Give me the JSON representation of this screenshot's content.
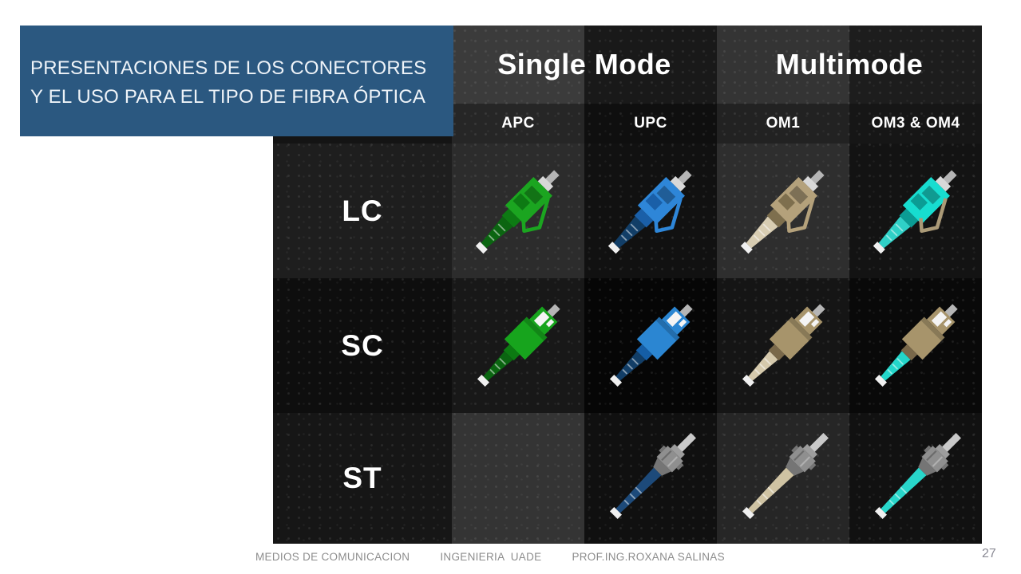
{
  "title": {
    "text": "PRESENTACIONES DE LOS CONECTORES Y EL USO PARA EL TIPO DE FIBRA ÓPTICA"
  },
  "colors": {
    "title_bg": "#2b5880",
    "title_text": "#eef3f8",
    "page_bg": "#ffffff",
    "table_bg": "#101010",
    "footer_text": "#8c8c8c",
    "apc_green": "#1ba520",
    "upc_blue": "#2e86d8",
    "om1_beige": "#b4a17b",
    "om3_om4_aqua": "#23d6ca"
  },
  "table": {
    "group_headers": [
      {
        "label": "Single Mode",
        "span": 2
      },
      {
        "label": "Multimode",
        "span": 2
      }
    ],
    "col_headers": [
      "APC",
      "UPC",
      "OM1",
      "OM3 & OM4"
    ],
    "row_headers": [
      "LC",
      "SC",
      "ST"
    ],
    "cells": [
      [
        {
          "name": "lc-apc-connector",
          "connector": "LC",
          "variant": "APC",
          "body": "#1ba520",
          "body_dark": "#0d7a13",
          "boot": "#0b6511"
        },
        {
          "name": "lc-upc-connector",
          "connector": "LC",
          "variant": "UPC",
          "body": "#2e86d8",
          "body_dark": "#1a5fa8",
          "boot": "#123e67"
        },
        {
          "name": "lc-om1-connector",
          "connector": "LC",
          "variant": "OM1",
          "body": "#b4a17b",
          "body_dark": "#7e6f4e",
          "boot": "#d8cdb2"
        },
        {
          "name": "lc-om3-om4-connector",
          "connector": "LC",
          "variant": "OM3 & OM4",
          "body": "#17ddd0",
          "body_dark": "#0b9c94",
          "boot": "#2fd0c7",
          "latch": "#ab9a77"
        }
      ],
      [
        {
          "name": "sc-apc-connector",
          "connector": "SC",
          "variant": "APC",
          "body": "#17a41d",
          "body_dark": "#0c7a12",
          "boot": "#0b6511"
        },
        {
          "name": "sc-upc-connector",
          "connector": "SC",
          "variant": "UPC",
          "body": "#2b86d2",
          "body_dark": "#155ea6",
          "boot": "#123e67"
        },
        {
          "name": "sc-om1-connector",
          "connector": "SC",
          "variant": "OM1",
          "body": "#a7946b",
          "body_dark": "#79684a",
          "boot": "#d5c9ac"
        },
        {
          "name": "sc-om3-om4-connector",
          "connector": "SC",
          "variant": "OM3 & OM4",
          "body": "#a7946b",
          "body_dark": "#79684a",
          "boot": "#23d6ca"
        }
      ],
      [
        null,
        {
          "name": "st-upc-connector",
          "connector": "ST",
          "variant": "UPC",
          "body": "#8f8f8f",
          "body_dark": "#757575",
          "boot": "#1d4a7a"
        },
        {
          "name": "st-om1-connector",
          "connector": "ST",
          "variant": "OM1",
          "body": "#8f8f8f",
          "body_dark": "#757575",
          "boot": "#cfc3a3"
        },
        {
          "name": "st-om3-om4-connector",
          "connector": "ST",
          "variant": "OM3 & OM4",
          "body": "#8f8f8f",
          "body_dark": "#757575",
          "boot": "#28d6ca"
        }
      ]
    ]
  },
  "footer": {
    "items": [
      "MEDIOS DE COMUNICACION",
      "INGENIERIA  UADE",
      "PROF.ING.ROXANA SALINAS"
    ],
    "page_number": "27"
  }
}
